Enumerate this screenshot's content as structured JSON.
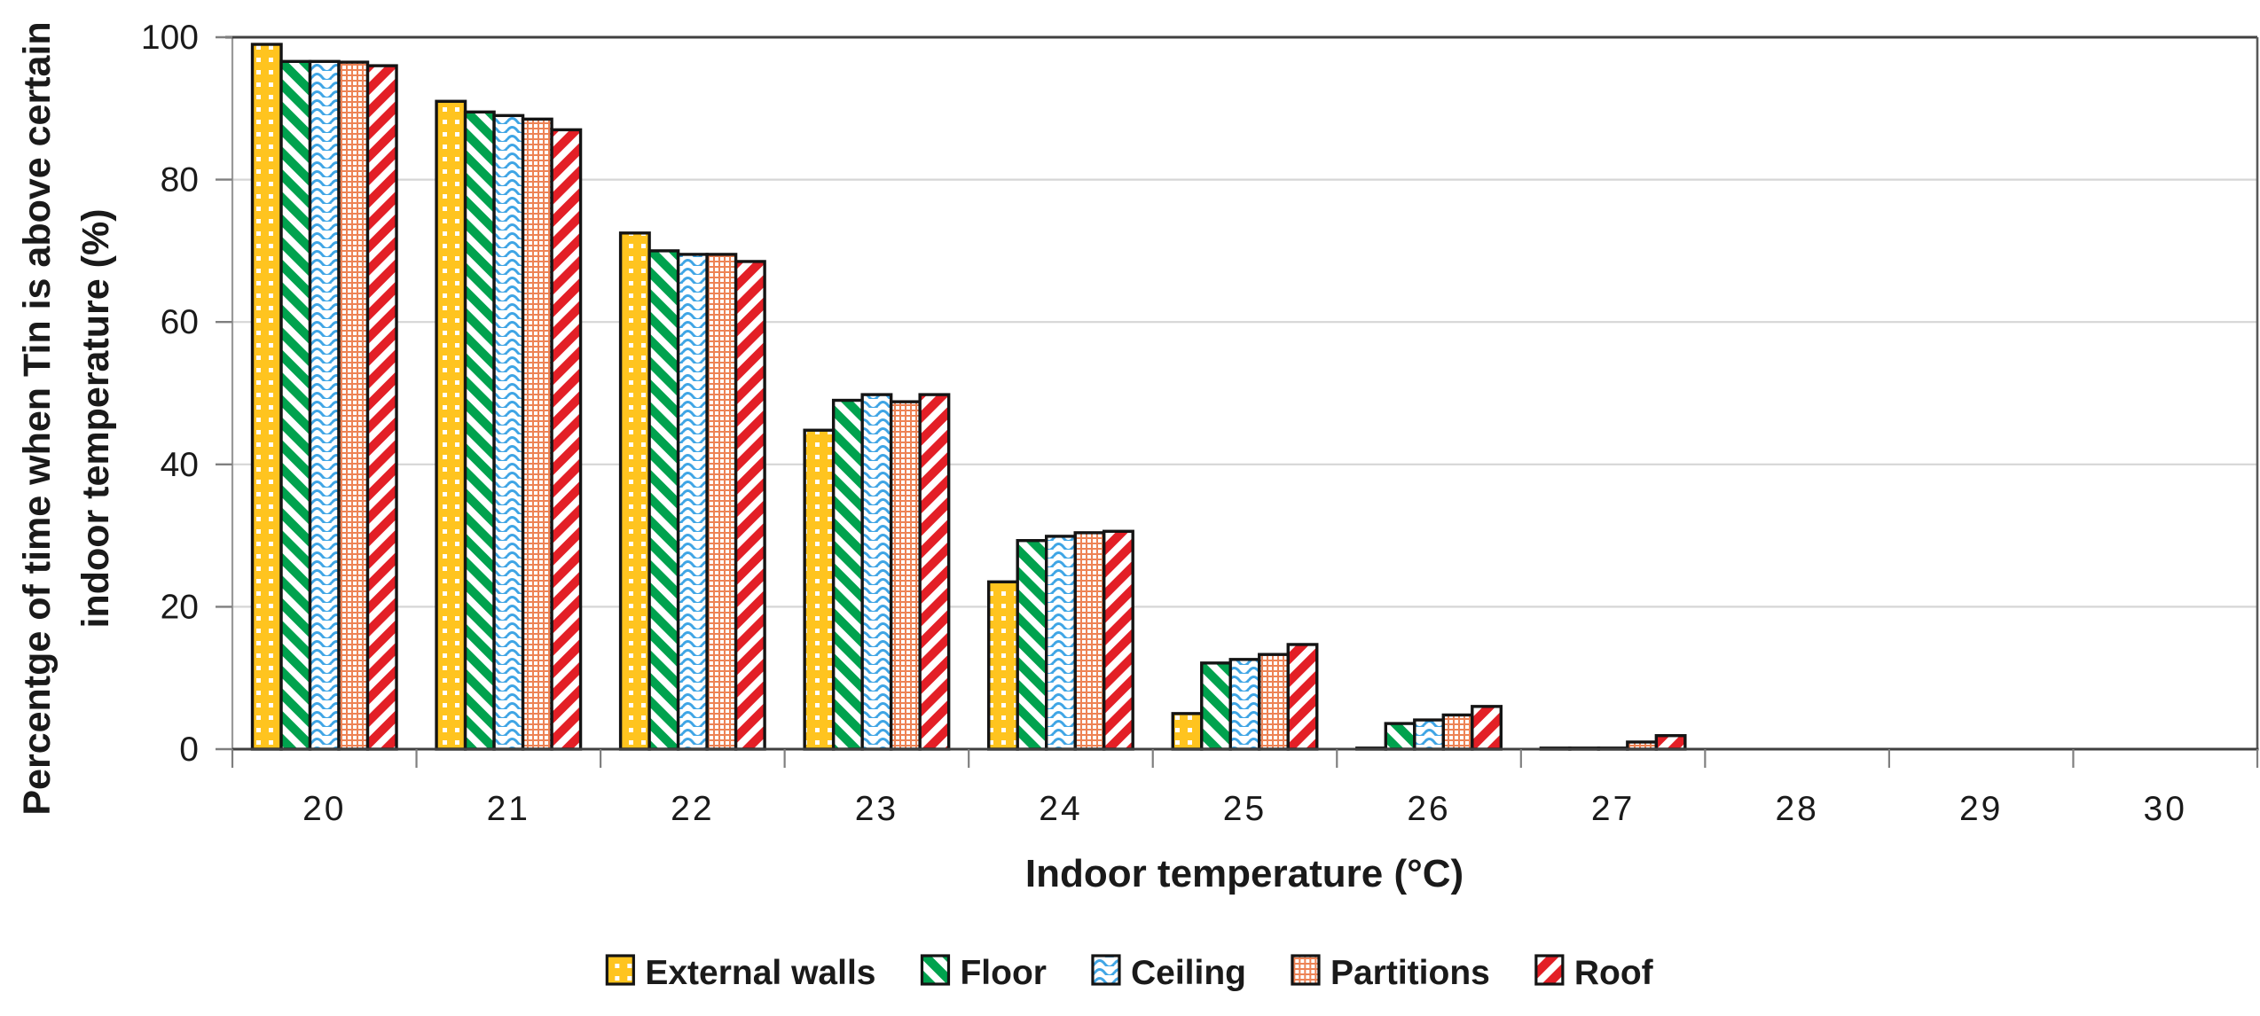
{
  "chart_data": {
    "type": "bar",
    "title": "",
    "categories": [
      "20",
      "21",
      "22",
      "23",
      "24",
      "25",
      "26",
      "27",
      "28",
      "29",
      "30"
    ],
    "series": [
      {
        "name": "External walls",
        "pattern": "grid",
        "color": "#FFC41F",
        "values": [
          99,
          91,
          72.5,
          44.8,
          23.5,
          5,
          0.15,
          0.15,
          0,
          0,
          0
        ]
      },
      {
        "name": "Floor",
        "pattern": "diagonal-down",
        "color": "#00A24E",
        "values": [
          96.6,
          89.5,
          70,
          49,
          29.3,
          12.1,
          3.6,
          0.15,
          0,
          0,
          0
        ]
      },
      {
        "name": "Ceiling",
        "pattern": "wave",
        "color": "#3FA5E5",
        "values": [
          96.6,
          89,
          69.5,
          49.8,
          29.9,
          12.6,
          4.1,
          0.15,
          0,
          0,
          0
        ]
      },
      {
        "name": "Partitions",
        "pattern": "dot-grid",
        "color": "#ED8355",
        "values": [
          96.5,
          88.5,
          69.5,
          48.8,
          30.4,
          13.3,
          4.8,
          1,
          0,
          0,
          0
        ]
      },
      {
        "name": "Roof",
        "pattern": "diagonal-up",
        "color": "#E31F26",
        "values": [
          96,
          87,
          68.5,
          49.8,
          30.6,
          14.7,
          6,
          1.9,
          0,
          0,
          0
        ]
      }
    ],
    "xlabel": "Indoor temperature (°C)",
    "ylabel_lines": [
      "Percentge of time when Tin is above certain",
      "indoor temperature (%)"
    ],
    "ylabel": "Percentge of time when Tin is above certain indoor temperature (%)",
    "yticks": [
      0,
      20,
      40,
      60,
      80,
      100
    ],
    "ylim": [
      0,
      100
    ],
    "grid": "horizontal-light-gray",
    "legend_position": "bottom-center"
  },
  "styles": {
    "background": "#FFFFFF",
    "text_color": "#1A1A1A",
    "gridline_color": "#D6D6D6",
    "axis_left_color": "#9A9A9A",
    "axis_top_color": "#404040",
    "axis_right_color": "#595959",
    "axis_bottom_color": "#404040",
    "tick_color": "#7F7F7F",
    "bar_border_color": "#141414"
  }
}
